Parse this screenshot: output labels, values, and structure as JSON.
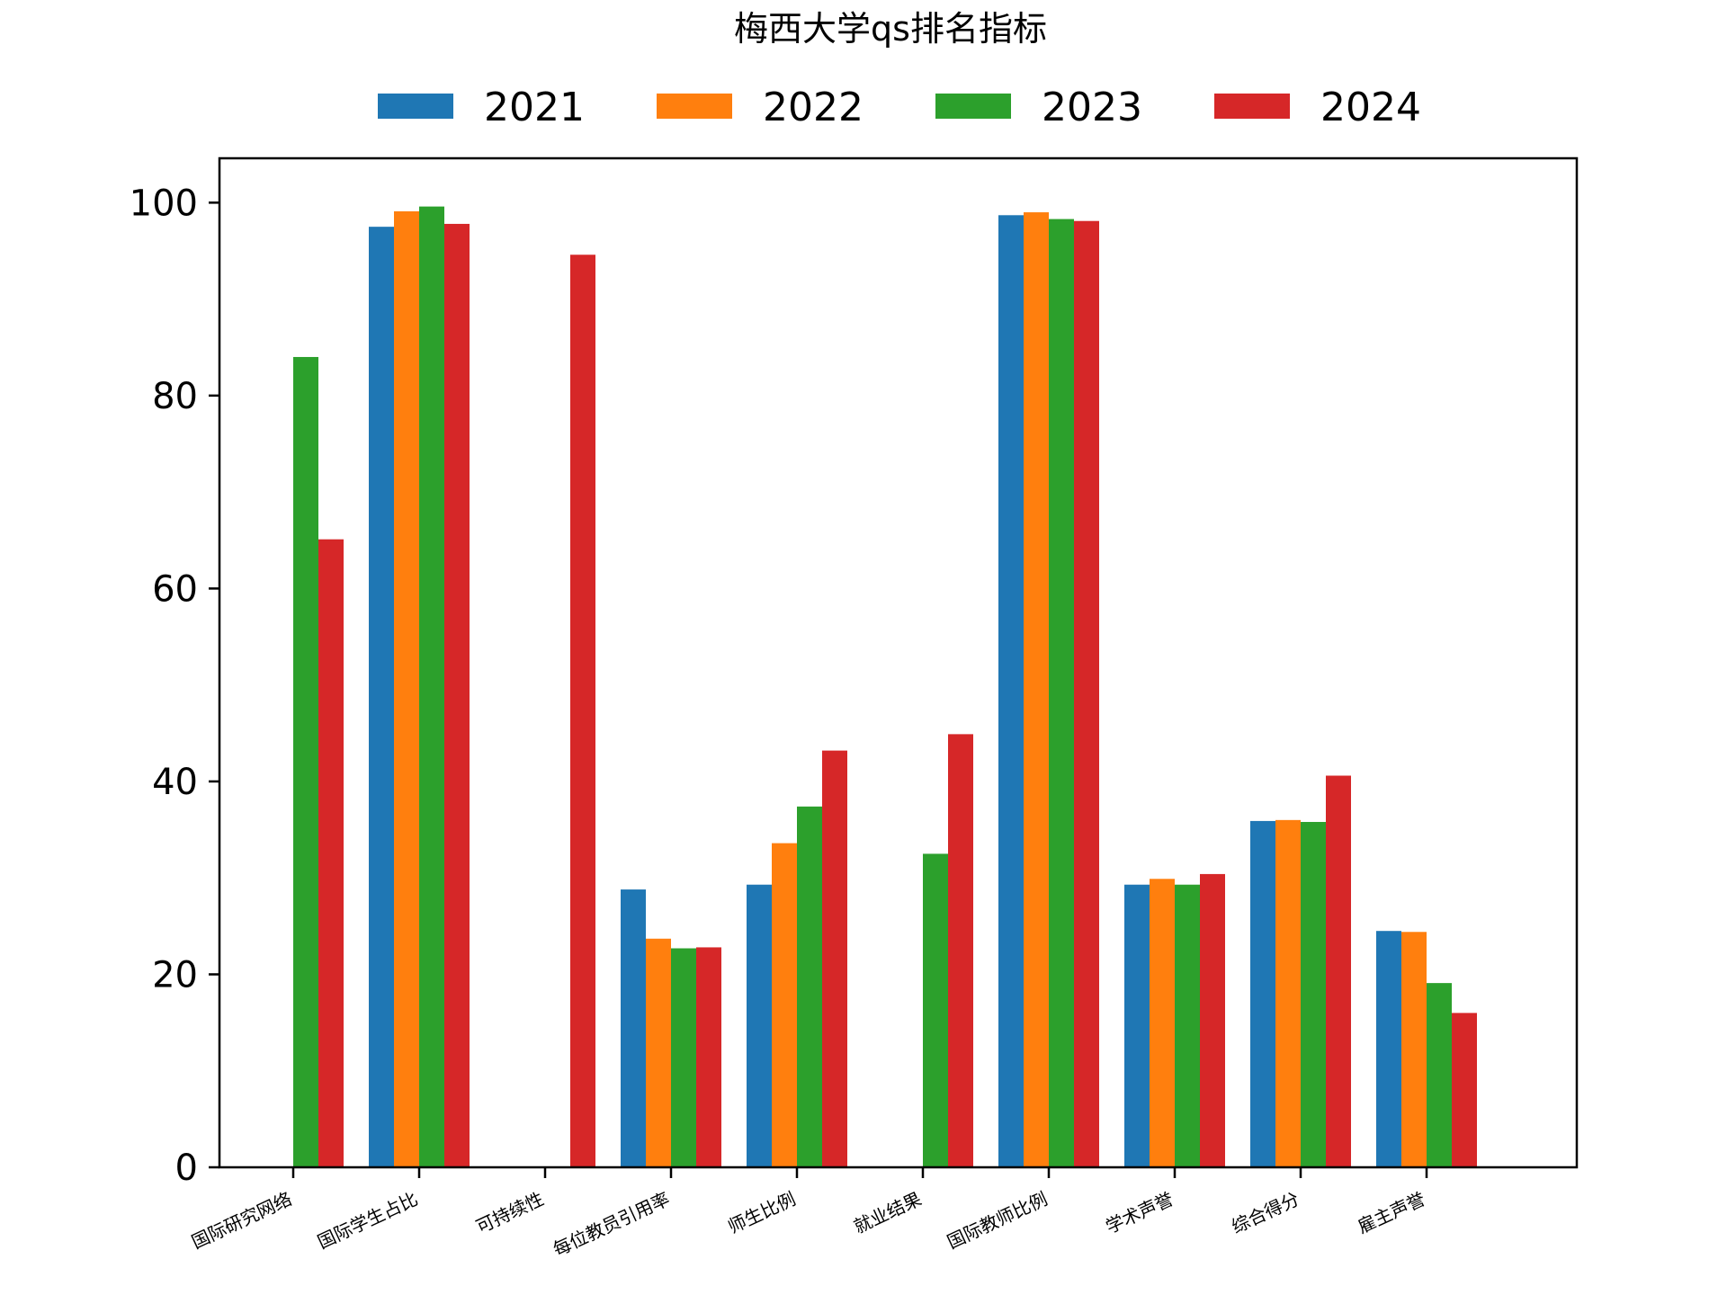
{
  "chart_data": {
    "type": "bar",
    "title": "梅西大学qs排名指标",
    "xlabel": "",
    "ylabel": "",
    "categories": [
      "国际研究网络",
      "国际学生占比",
      "可持续性",
      "每位教员引用率",
      "师生比例",
      "就业结果",
      "国际教师比例",
      "学术声誉",
      "综合得分",
      "雇主声誉"
    ],
    "series": [
      {
        "name": "2021",
        "color": "#1f77b4",
        "values": [
          null,
          97.5,
          null,
          28.8,
          29.3,
          null,
          98.7,
          29.3,
          35.9,
          24.5
        ]
      },
      {
        "name": "2022",
        "color": "#ff7f0e",
        "values": [
          null,
          99.1,
          null,
          23.7,
          33.6,
          null,
          99.0,
          29.9,
          36.0,
          24.4
        ]
      },
      {
        "name": "2023",
        "color": "#2ca02c",
        "values": [
          84.0,
          99.6,
          null,
          22.7,
          37.4,
          32.5,
          98.3,
          29.3,
          35.8,
          19.1
        ]
      },
      {
        "name": "2024",
        "color": "#d62728",
        "values": [
          65.1,
          97.8,
          94.6,
          22.8,
          43.2,
          44.9,
          98.1,
          30.4,
          40.6,
          16.0
        ]
      }
    ],
    "ylim": [
      0,
      104.6
    ],
    "yticks": [
      0,
      20,
      40,
      60,
      80,
      100
    ],
    "grid": false,
    "legend": "top-center"
  }
}
